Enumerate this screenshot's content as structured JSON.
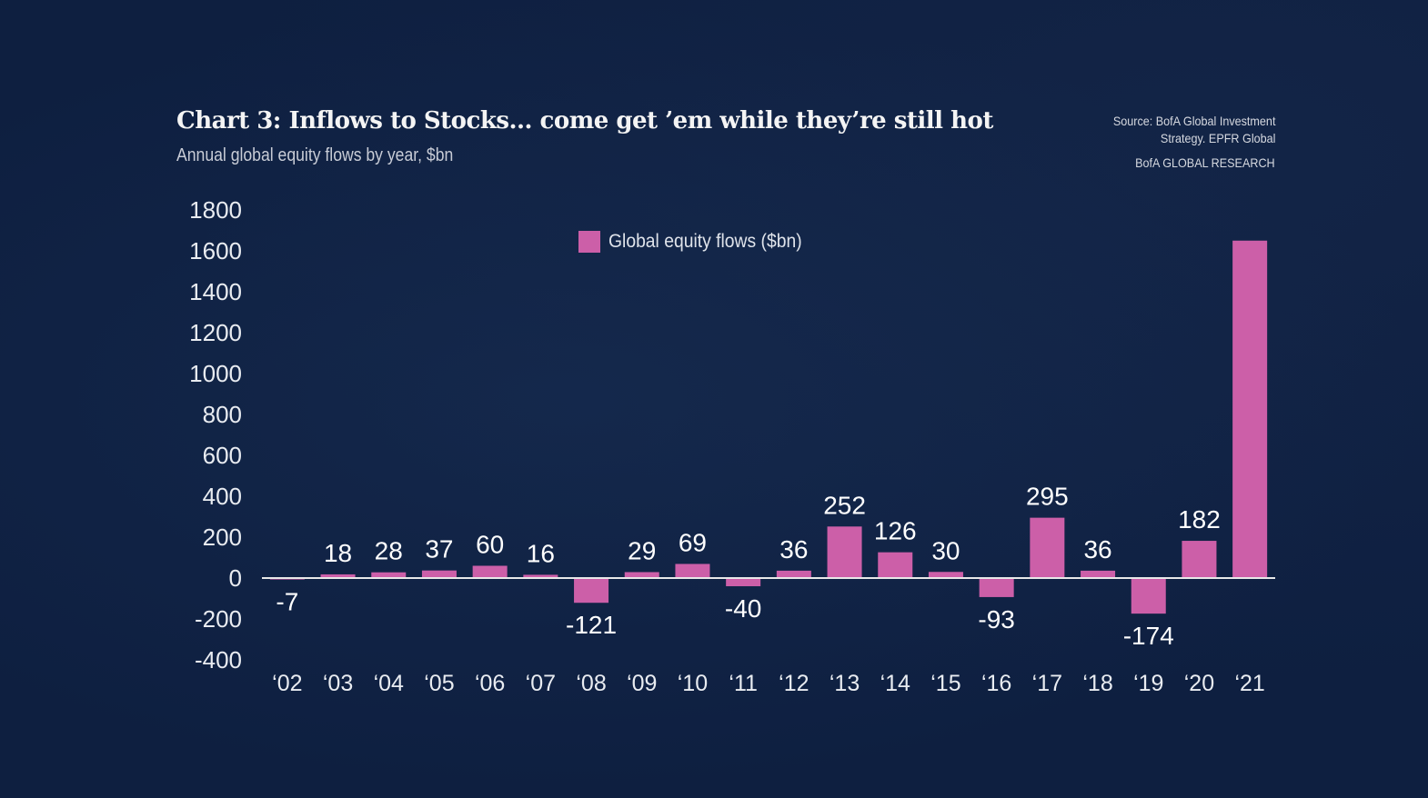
{
  "header": {
    "title": "Chart 3: Inflows to Stocks… come get ’em while they’re still hot",
    "subtitle": "Annual global equity flows by year, $bn",
    "source_line1": "Source: BofA Global Investment",
    "source_line2": "Strategy. EPFR Global",
    "research": "BofA GLOBAL RESEARCH"
  },
  "colors": {
    "background": "#0e1f40",
    "bar": "#cc5fa8",
    "text": "#ffffff",
    "baseline": "#e8e8e8"
  },
  "chart_data": {
    "type": "bar",
    "title": "Chart 3: Inflows to Stocks… come get ’em while they’re still hot",
    "subtitle": "Annual global equity flows by year, $bn",
    "xlabel": "",
    "ylabel": "",
    "ylim": [
      -400,
      1800
    ],
    "yticks": [
      1800,
      1600,
      1400,
      1200,
      1000,
      800,
      600,
      400,
      200,
      0,
      -200,
      -400
    ],
    "ytick_labels": [
      "1800",
      "1600",
      "1400",
      "1200",
      "1000",
      "800",
      "600",
      "400",
      "200",
      "0",
      "-200",
      "-400"
    ],
    "grid": false,
    "legend": {
      "position": "top-center",
      "entries": [
        "Global equity flows ($bn)"
      ]
    },
    "categories": [
      "‘02",
      "‘03",
      "‘04",
      "‘05",
      "‘06",
      "‘07",
      "‘08",
      "‘09",
      "‘10",
      "‘11",
      "‘12",
      "‘13",
      "‘14",
      "‘15",
      "‘16",
      "‘17",
      "‘18",
      "‘19",
      "‘20",
      "‘21"
    ],
    "series": [
      {
        "name": "Global equity flows ($bn)",
        "values": [
          -7,
          18,
          28,
          37,
          60,
          16,
          -121,
          29,
          69,
          -40,
          36,
          252,
          126,
          30,
          -93,
          295,
          36,
          -174,
          182,
          1650
        ],
        "data_labels": [
          "-7",
          "18",
          "28",
          "37",
          "60",
          "16",
          "-121",
          "29",
          "69",
          "-40",
          "36",
          "252",
          "126",
          "30",
          "-93",
          "295",
          "36",
          "-174",
          "182",
          ""
        ]
      }
    ]
  }
}
